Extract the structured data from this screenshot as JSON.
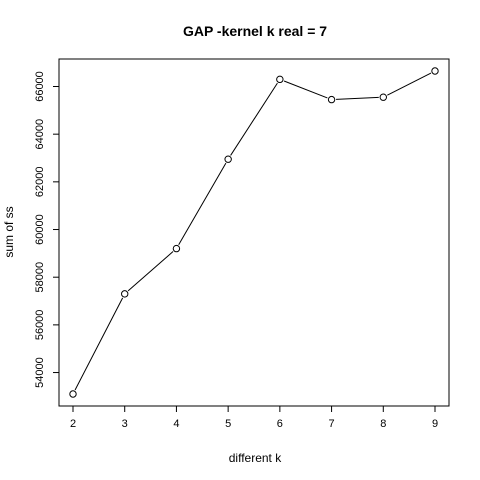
{
  "chart_data": {
    "type": "line",
    "title": "GAP -kernel  k real =  7",
    "xlabel": "different k",
    "ylabel": "sum of ss",
    "x": [
      2,
      3,
      4,
      5,
      6,
      7,
      8,
      9
    ],
    "series": [
      {
        "values": [
          53100,
          57300,
          59200,
          62950,
          66300,
          65450,
          65550,
          66650
        ]
      }
    ],
    "xlim": [
      2,
      9
    ],
    "ylim": [
      53100,
      66650
    ],
    "xticks": [
      2,
      3,
      4,
      5,
      6,
      7,
      8,
      9
    ],
    "yticks": [
      54000,
      56000,
      58000,
      60000,
      62000,
      64000,
      66000
    ],
    "marker": "open-circle",
    "grid": false,
    "legend": "none"
  }
}
